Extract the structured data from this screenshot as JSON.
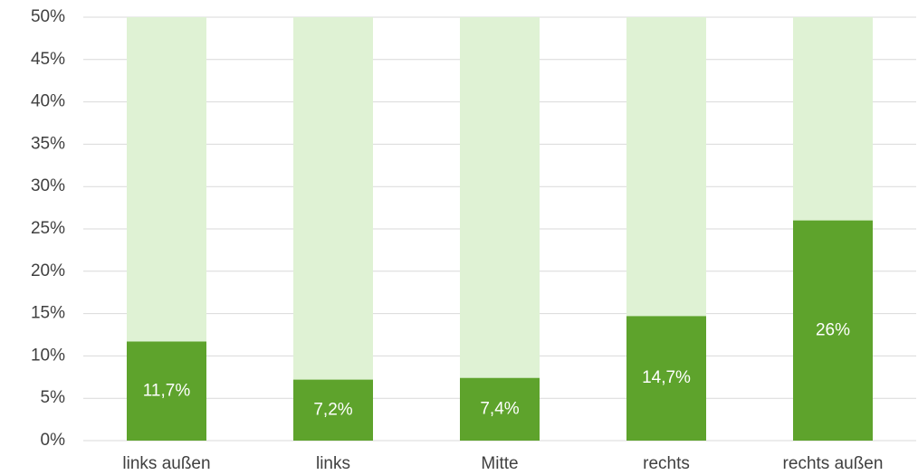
{
  "chart_data": {
    "type": "bar",
    "categories": [
      "links außen",
      "links",
      "Mitte",
      "rechts",
      "rechts außen"
    ],
    "values": [
      11.7,
      7.2,
      7.4,
      14.7,
      26
    ],
    "value_labels": [
      "11,7%",
      "7,2%",
      "7,4%",
      "14,7%",
      "26%"
    ],
    "color": "#5ea32c",
    "track_color": "#dff2d4",
    "ylim": [
      0,
      50
    ],
    "yticks": [
      {
        "value": 0,
        "label": "0%"
      },
      {
        "value": 5,
        "label": "5%"
      },
      {
        "value": 10,
        "label": "10%"
      },
      {
        "value": 15,
        "label": "15%"
      },
      {
        "value": 20,
        "label": "20%"
      },
      {
        "value": 25,
        "label": "25%"
      },
      {
        "value": 30,
        "label": "30%"
      },
      {
        "value": 35,
        "label": "35%"
      },
      {
        "value": 40,
        "label": "40%"
      },
      {
        "value": 45,
        "label": "45%"
      },
      {
        "value": 50,
        "label": "50%"
      }
    ],
    "grid": true
  }
}
